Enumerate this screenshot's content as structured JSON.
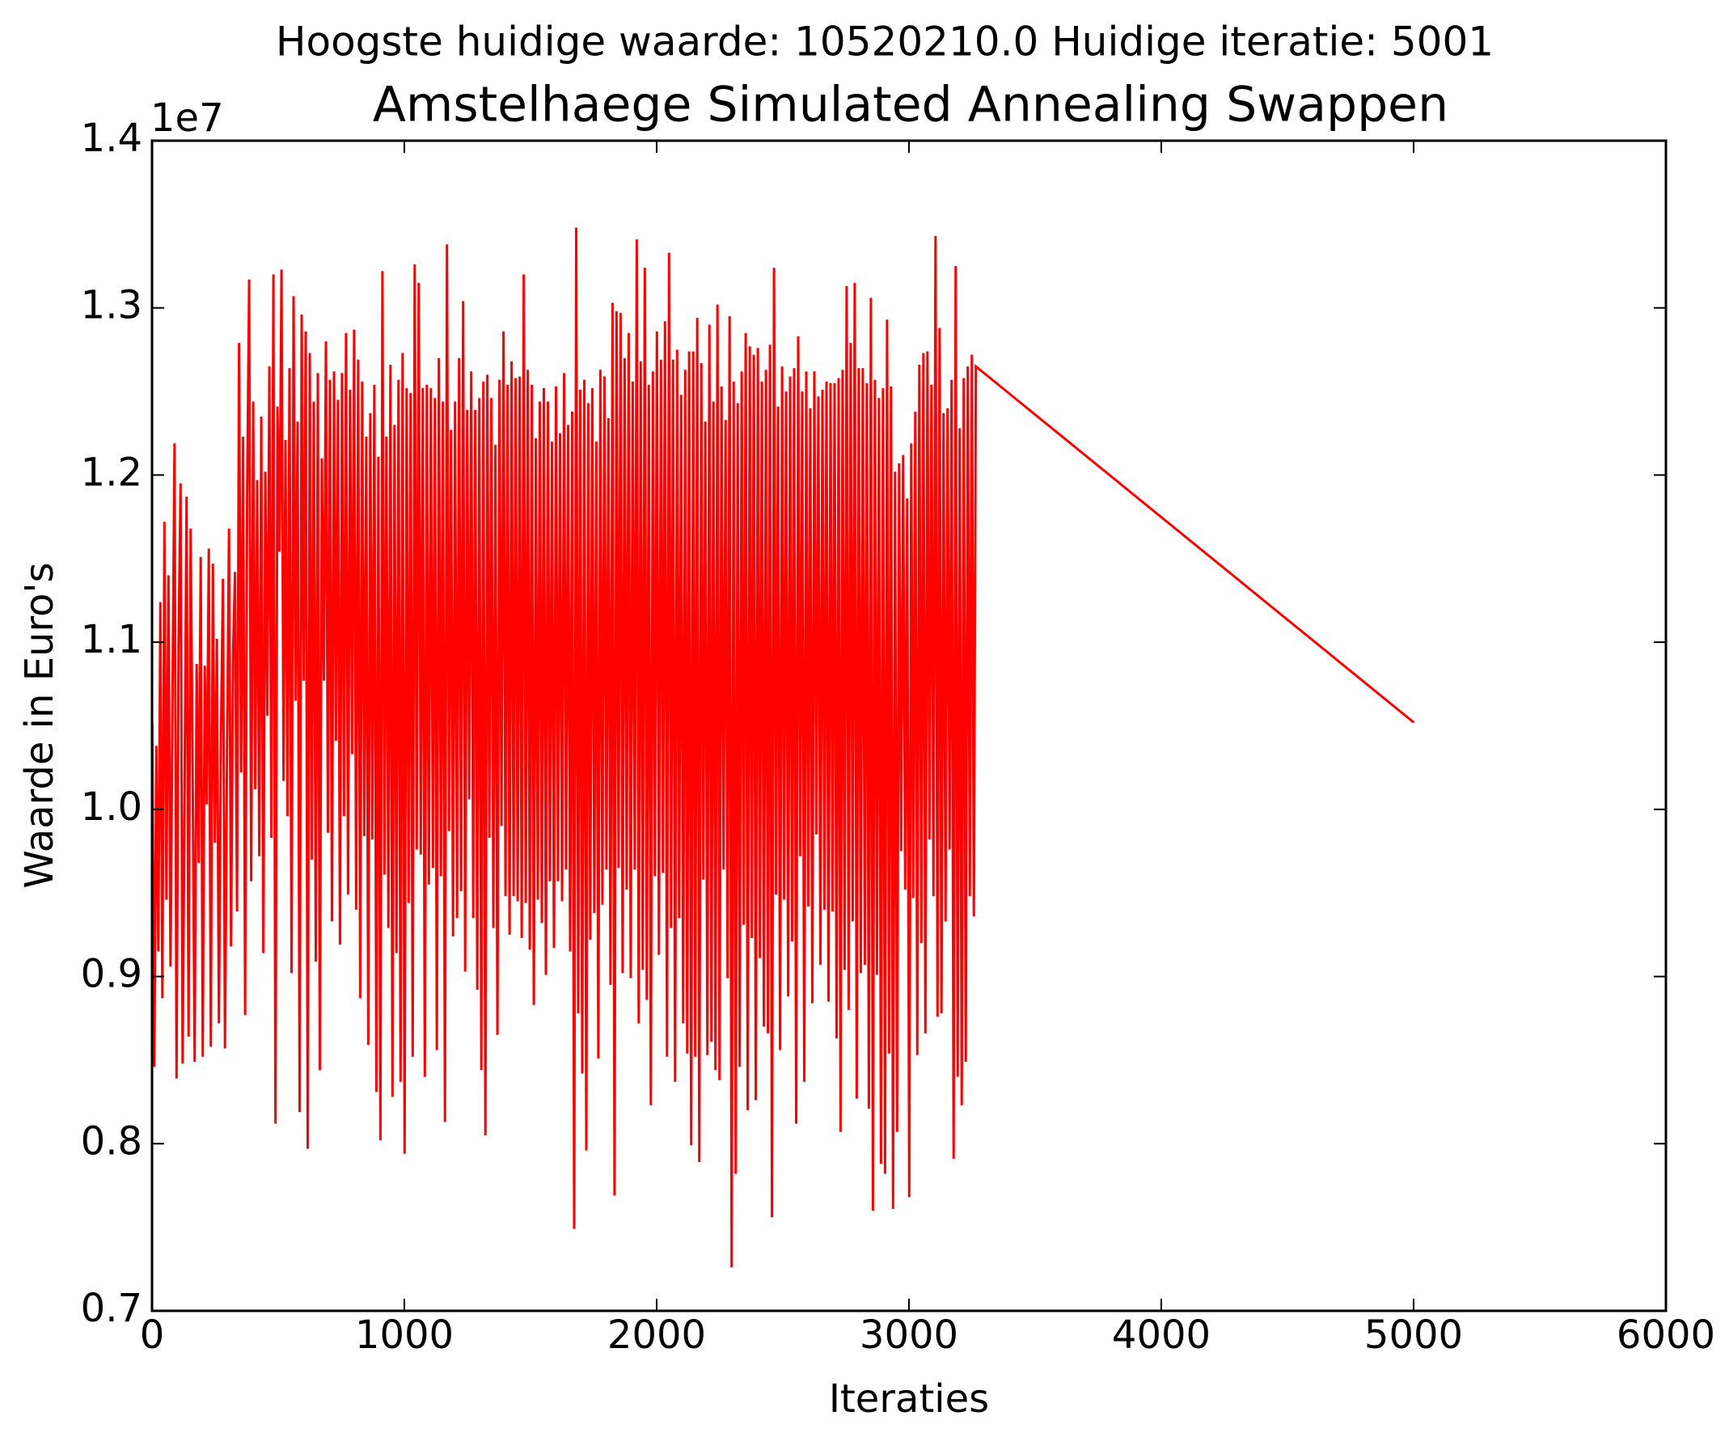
{
  "suptitle": "Hoogste huidige waarde: 10520210.0 Huidige iteratie: 5001",
  "chart_data": {
    "type": "line",
    "title": "Amstelhaege Simulated Annealing Swappen",
    "xlabel": "Iteraties",
    "ylabel": "Waarde in Euro's",
    "xlim": [
      0,
      6000
    ],
    "ylim": [
      7000000,
      14000000
    ],
    "y_offset_label": "1e7",
    "xticks": [
      0,
      1000,
      2000,
      3000,
      4000,
      5000,
      6000
    ],
    "xtick_labels": [
      "0",
      "1000",
      "2000",
      "3000",
      "4000",
      "5000",
      "6000"
    ],
    "yticks": [
      7000000,
      8000000,
      9000000,
      10000000,
      11000000,
      12000000,
      13000000,
      14000000
    ],
    "ytick_labels": [
      "0.7",
      "0.8",
      "0.9",
      "1.0",
      "1.1",
      "1.2",
      "1.3",
      "1.4"
    ],
    "grid": false,
    "series": [
      {
        "color": "#ff0000",
        "x_start": 1,
        "x_end": 5001,
        "x_step": 8,
        "values": [
          10520000,
          8460000,
          10380000,
          9150000,
          11240000,
          8870000,
          11720000,
          9460000,
          11400000,
          9060000,
          10650000,
          12190000,
          8390000,
          10990000,
          11950000,
          8480000,
          10070000,
          11870000,
          8640000,
          11680000,
          10240000,
          8490000,
          10870000,
          9680000,
          11510000,
          8520000,
          10860000,
          10030000,
          11560000,
          8580000,
          11470000,
          9800000,
          11020000,
          8720000,
          10420000,
          11380000,
          8570000,
          10310000,
          11680000,
          9180000,
          10940000,
          11420000,
          9390000,
          12790000,
          10220000,
          12230000,
          8770000,
          11880000,
          13170000,
          9570000,
          12440000,
          10120000,
          11970000,
          9720000,
          12350000,
          9140000,
          12020000,
          10560000,
          12650000,
          9830000,
          13200000,
          8120000,
          12410000,
          11540000,
          13230000,
          10170000,
          12210000,
          9960000,
          12640000,
          9020000,
          13070000,
          10650000,
          12320000,
          8190000,
          12960000,
          10770000,
          12860000,
          7970000,
          12730000,
          9700000,
          12440000,
          9090000,
          12610000,
          8440000,
          12100000,
          10770000,
          12800000,
          9860000,
          12570000,
          9330000,
          12620000,
          10410000,
          12450000,
          9190000,
          12610000,
          9960000,
          12850000,
          9490000,
          12510000,
          10330000,
          12870000,
          9400000,
          12690000,
          8870000,
          12560000,
          9840000,
          12230000,
          8590000,
          12370000,
          9820000,
          12540000,
          8310000,
          12110000,
          8020000,
          13220000,
          9610000,
          12230000,
          9290000,
          12660000,
          8280000,
          12300000,
          9140000,
          12570000,
          8370000,
          12730000,
          7940000,
          12520000,
          9440000,
          12490000,
          8520000,
          13260000,
          9760000,
          13150000,
          9730000,
          12520000,
          8400000,
          12540000,
          9550000,
          12520000,
          9650000,
          12460000,
          8560000,
          12700000,
          9600000,
          12440000,
          8130000,
          13380000,
          9870000,
          12270000,
          9240000,
          12440000,
          9350000,
          12700000,
          9510000,
          13040000,
          9030000,
          12390000,
          10060000,
          12620000,
          9350000,
          12390000,
          8920000,
          12460000,
          8440000,
          12560000,
          8050000,
          12600000,
          9830000,
          12460000,
          9290000,
          12180000,
          8650000,
          12570000,
          9900000,
          12860000,
          9480000,
          12540000,
          9250000,
          12680000,
          9480000,
          12580000,
          9450000,
          12590000,
          9230000,
          13200000,
          9440000,
          12630000,
          9160000,
          12540000,
          8830000,
          12220000,
          9460000,
          12440000,
          9320000,
          12520000,
          9010000,
          12440000,
          9570000,
          12200000,
          9170000,
          12530000,
          9570000,
          12250000,
          9450000,
          12610000,
          9640000,
          12300000,
          9150000,
          12380000,
          7490000,
          13480000,
          8780000,
          12510000,
          8420000,
          12570000,
          7960000,
          12430000,
          9220000,
          12520000,
          9380000,
          12200000,
          8510000,
          12630000,
          9430000,
          12590000,
          9640000,
          12340000,
          8950000,
          13030000,
          7690000,
          12980000,
          9650000,
          12970000,
          9020000,
          12700000,
          9520000,
          12850000,
          8990000,
          12560000,
          9640000,
          13410000,
          8720000,
          12680000,
          9040000,
          13240000,
          8860000,
          12540000,
          8230000,
          12620000,
          9600000,
          12860000,
          9130000,
          12690000,
          9620000,
          12920000,
          8520000,
          13330000,
          9290000,
          12690000,
          8370000,
          12750000,
          9350000,
          12480000,
          8720000,
          12630000,
          8540000,
          12740000,
          7990000,
          12740000,
          8520000,
          12940000,
          7890000,
          12670000,
          9580000,
          12320000,
          8530000,
          12900000,
          8610000,
          12440000,
          8440000,
          13020000,
          8380000,
          12530000,
          9640000,
          12330000,
          8990000,
          12950000,
          7260000,
          12560000,
          7820000,
          12430000,
          8460000,
          12620000,
          9310000,
          12850000,
          8200000,
          12770000,
          9230000,
          12720000,
          8260000,
          12760000,
          9110000,
          12560000,
          8700000,
          12630000,
          8660000,
          12780000,
          7560000,
          13240000,
          9490000,
          12410000,
          8560000,
          12650000,
          9460000,
          12500000,
          8880000,
          12590000,
          9210000,
          12640000,
          8120000,
          12830000,
          9720000,
          12500000,
          8370000,
          12620000,
          9420000,
          12400000,
          8840000,
          12620000,
          9850000,
          12470000,
          9070000,
          12510000,
          9400000,
          12560000,
          8850000,
          12550000,
          9390000,
          12550000,
          8630000,
          12580000,
          8070000,
          12630000,
          9040000,
          13130000,
          8800000,
          12790000,
          9330000,
          13150000,
          8270000,
          12640000,
          9020000,
          12640000,
          9070000,
          12550000,
          8210000,
          13060000,
          7600000,
          12570000,
          9010000,
          12460000,
          7880000,
          12520000,
          7820000,
          12930000,
          8540000,
          12530000,
          7610000,
          12020000,
          8070000,
          12070000,
          9750000,
          12120000,
          9520000,
          11860000,
          7680000,
          12190000,
          9470000,
          12380000,
          8530000,
          12660000,
          9200000,
          12730000,
          8660000,
          12740000,
          9820000,
          12540000,
          9480000,
          13430000,
          8760000,
          12880000,
          8780000,
          12370000,
          9330000,
          12400000,
          9760000,
          12570000,
          7910000,
          13250000,
          8400000,
          12280000,
          8230000,
          12580000,
          8490000,
          12650000,
          9480000,
          12720000,
          9360000,
          12650000,
          10520000
        ]
      }
    ]
  }
}
